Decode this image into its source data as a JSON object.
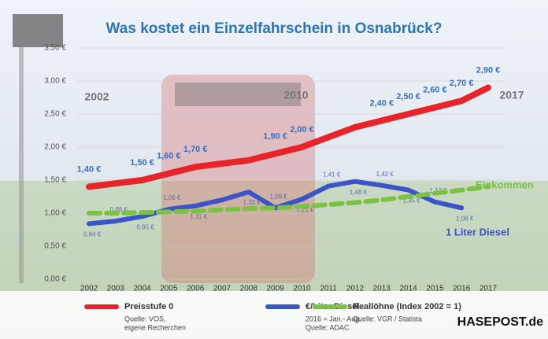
{
  "chart_data": {
    "type": "line",
    "title": "Was kostet ein Einzelfahrschein in Osnabrück?",
    "categories": [
      "2002",
      "2003",
      "2004",
      "2005",
      "2006",
      "2007",
      "2008",
      "2009",
      "2010",
      "2011",
      "2012",
      "2013",
      "2014",
      "2015",
      "2016",
      "2017"
    ],
    "series": [
      {
        "name": "Preisstufe 0",
        "color": "#e8232a",
        "values": [
          1.4,
          1.45,
          1.5,
          1.6,
          1.7,
          1.75,
          1.8,
          1.9,
          2.0,
          2.15,
          2.3,
          2.4,
          2.5,
          2.6,
          2.7,
          2.9
        ],
        "value_labels": [
          "1,40 €",
          null,
          "1,50 €",
          "1,60 €",
          "1,70 €",
          null,
          null,
          "1,90 €",
          "2,00 €",
          null,
          null,
          "2,40 €",
          "2,50 €",
          "2,60 €",
          "2,70 €",
          "2,90 €"
        ],
        "source": [
          "Quelle: VOS,",
          "eigene Recherchen"
        ]
      },
      {
        "name": "€/Liter Diesel",
        "color": "#3b55c9",
        "values": [
          0.84,
          0.88,
          0.95,
          1.06,
          1.11,
          1.2,
          1.32,
          1.08,
          1.21,
          1.41,
          1.48,
          1.42,
          1.35,
          1.17,
          1.08,
          null
        ],
        "value_labels": [
          "0,84 €",
          "0,88 €",
          "0,95 €",
          "1,06 €",
          "1,11 €",
          null,
          "1,32 €",
          "1,08 €",
          "1,21 €",
          "1,41 €",
          "1,48 €",
          "1,42 €",
          "1,35 €",
          "1,17 €",
          "1,08 €",
          null
        ],
        "source": [
          "2016 = Jan.- Aug.",
          "Quelle: ADAC"
        ]
      },
      {
        "name": "Reallöhne (Index 2002 = 1)",
        "color": "#7cc242",
        "dashed": true,
        "values": [
          1.0,
          1.0,
          1.01,
          1.02,
          1.03,
          1.05,
          1.07,
          1.08,
          1.1,
          1.13,
          1.16,
          1.2,
          1.25,
          1.3,
          1.35,
          1.4
        ],
        "source": [
          "Quelle: VGR / Statista"
        ]
      }
    ],
    "ylim": [
      0,
      3.5
    ],
    "yticks": [
      {
        "value": 0,
        "label": "0,00 €"
      },
      {
        "value": 0.5,
        "label": "0,50 €"
      },
      {
        "value": 1,
        "label": "1,00 €"
      },
      {
        "value": 1.5,
        "label": "1,50 €"
      },
      {
        "value": 2,
        "label": "2,00 €"
      },
      {
        "value": 2.5,
        "label": "2,50 €"
      },
      {
        "value": 3,
        "label": "3,00 €"
      },
      {
        "value": 3.5,
        "label": "3,50 €"
      }
    ],
    "annotations": [
      "2002",
      "2010",
      "2017",
      "Einkommen",
      "1 Liter Diesel"
    ],
    "brand": "HASEPOST.de"
  }
}
